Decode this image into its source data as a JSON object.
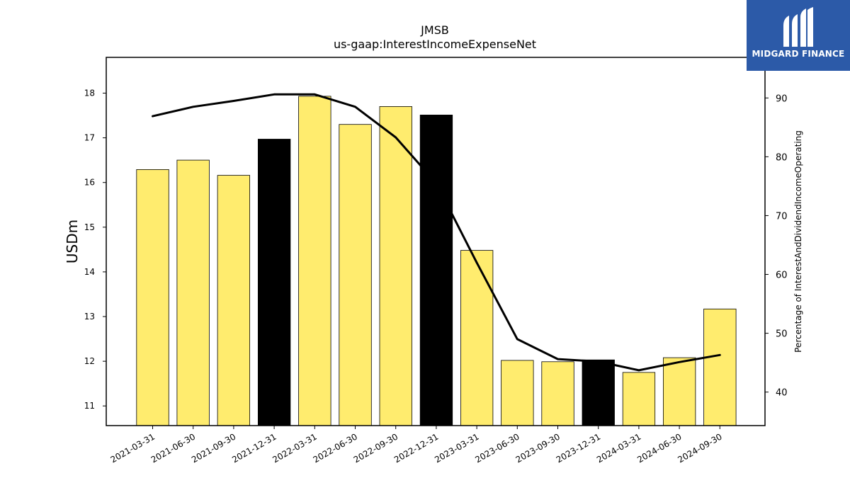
{
  "logo": {
    "text": "MIDGARD FINANCE"
  },
  "chart_data": {
    "type": "bar",
    "title": "JMSB",
    "subtitle": "us-gaap:InterestIncomeExpenseNet",
    "ylabel": "USDm",
    "y2label": "Percentage of InterestAndDividendIncomeOperating",
    "ylim": [
      10.56,
      18.8
    ],
    "y2lim": [
      34.3,
      96.9
    ],
    "yticks": [
      11,
      12,
      13,
      14,
      15,
      16,
      17,
      18
    ],
    "y2ticks": [
      40,
      50,
      60,
      70,
      80,
      90
    ],
    "categories": [
      "2021-03-31",
      "2021-06-30",
      "2021-09-30",
      "2021-12-31",
      "2022-03-31",
      "2022-06-30",
      "2022-09-30",
      "2022-12-31",
      "2023-03-31",
      "2023-06-30",
      "2023-09-30",
      "2023-12-31",
      "2024-03-31",
      "2024-06-30",
      "2024-09-30"
    ],
    "series": [
      {
        "type": "bar",
        "axis": "left",
        "values": [
          16.29,
          16.5,
          16.16,
          16.97,
          17.93,
          17.3,
          17.7,
          17.51,
          14.48,
          12.02,
          11.99,
          12.03,
          11.75,
          12.08,
          13.17
        ],
        "colors": [
          "#ffec6e",
          "#ffec6e",
          "#ffec6e",
          "#000000",
          "#ffec6e",
          "#ffec6e",
          "#ffec6e",
          "#000000",
          "#ffec6e",
          "#ffec6e",
          "#ffec6e",
          "#000000",
          "#ffec6e",
          "#ffec6e",
          "#ffec6e"
        ]
      },
      {
        "type": "line",
        "axis": "right",
        "color": "#000000",
        "values": [
          86.9,
          88.5,
          89.5,
          90.6,
          90.6,
          88.5,
          83.3,
          75.5,
          62.0,
          49.0,
          45.6,
          45.2,
          43.7,
          45.1,
          46.3
        ]
      }
    ],
    "grid": false
  }
}
